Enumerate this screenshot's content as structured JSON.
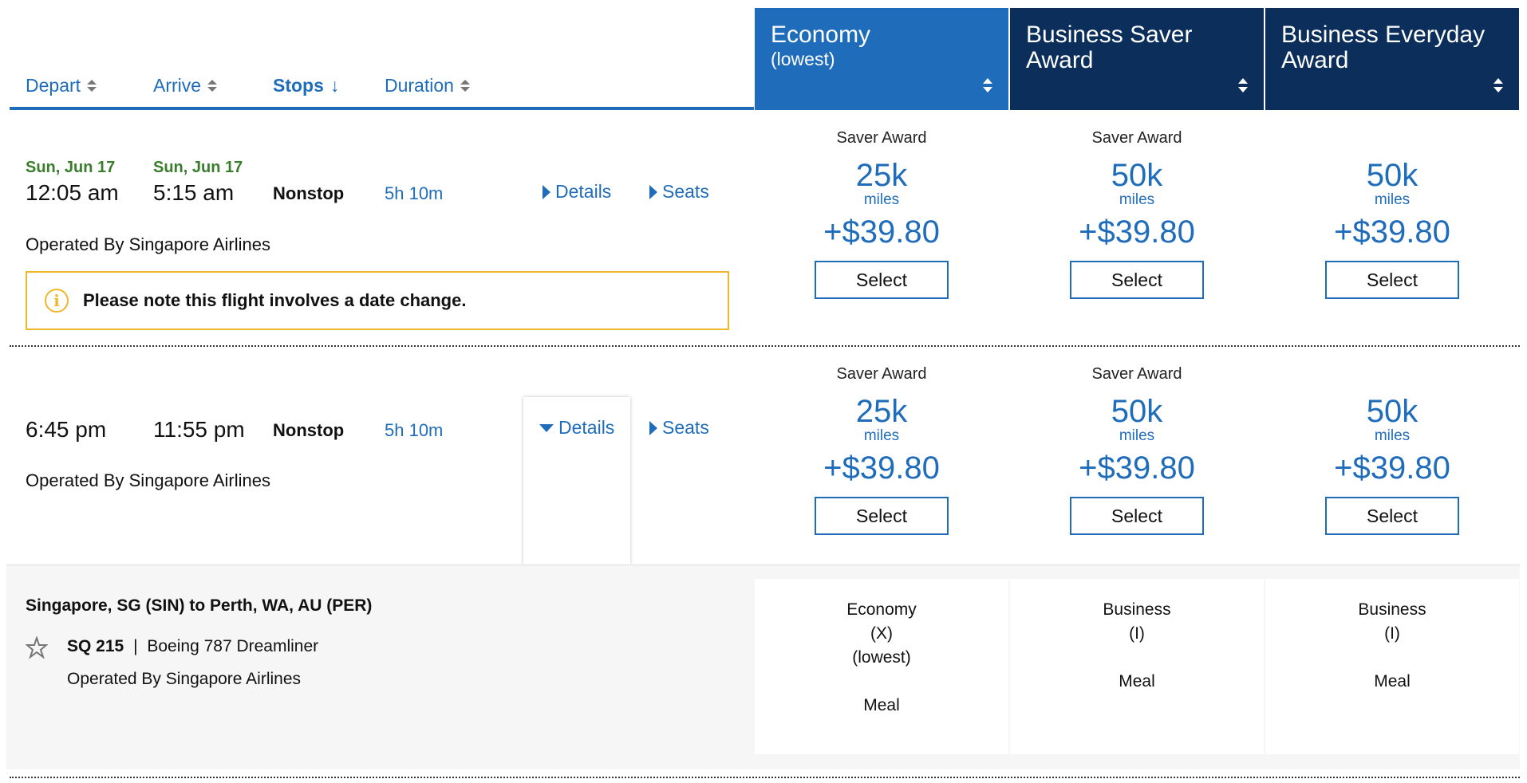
{
  "sort_header": {
    "depart": "Depart",
    "arrive": "Arrive",
    "stops": "Stops",
    "stops_arrow": "↓",
    "duration": "Duration"
  },
  "fare_columns": [
    {
      "title": "Economy",
      "subtitle": "(lowest)",
      "color": "#1f6dba"
    },
    {
      "title": "Business Saver",
      "subtitle": "Award",
      "color": "#0b2e5b"
    },
    {
      "title": "Business Everyday",
      "subtitle": "Award",
      "color": "#0b2e5b"
    }
  ],
  "flights": [
    {
      "depart_date": "Sun, Jun 17",
      "depart_time": "12:05 am",
      "arrive_date": "Sun, Jun 17",
      "arrive_time": "5:15 am",
      "stops": "Nonstop",
      "duration": "5h 10m",
      "details_label": "Details",
      "seats_label": "Seats",
      "operated_by": "Operated By Singapore Airlines",
      "notice": "Please note this flight involves a date change.",
      "fares": [
        {
          "label": "Saver Award",
          "miles": "25k",
          "unit": "miles",
          "tax": "+$39.80",
          "button": "Select"
        },
        {
          "label": "Saver Award",
          "miles": "50k",
          "unit": "miles",
          "tax": "+$39.80",
          "button": "Select"
        },
        {
          "label": "",
          "miles": "50k",
          "unit": "miles",
          "tax": "+$39.80",
          "button": "Select"
        }
      ]
    },
    {
      "depart_time": "6:45 pm",
      "arrive_time": "11:55 pm",
      "stops": "Nonstop",
      "duration": "5h 10m",
      "details_label": "Details",
      "seats_label": "Seats",
      "operated_by": "Operated By Singapore Airlines",
      "fares": [
        {
          "label": "Saver Award",
          "miles": "25k",
          "unit": "miles",
          "tax": "+$39.80",
          "button": "Select"
        },
        {
          "label": "Saver Award",
          "miles": "50k",
          "unit": "miles",
          "tax": "+$39.80",
          "button": "Select"
        },
        {
          "label": "",
          "miles": "50k",
          "unit": "miles",
          "tax": "+$39.80",
          "button": "Select"
        }
      ]
    }
  ],
  "details": {
    "route": "Singapore, SG (SIN) to Perth, WA, AU (PER)",
    "flight_number": "SQ 215",
    "separator": "|",
    "aircraft": "Boeing 787 Dreamliner",
    "operated_by": "Operated By Singapore Airlines",
    "airline_icon": "star-alliance-icon",
    "cabins": [
      {
        "cabin": "Economy",
        "code": "(X)",
        "note": "(lowest)",
        "meal": "Meal"
      },
      {
        "cabin": "Business",
        "code": "(I)",
        "note": "",
        "meal": "Meal"
      },
      {
        "cabin": "Business",
        "code": "(I)",
        "note": "",
        "meal": "Meal"
      }
    ]
  }
}
